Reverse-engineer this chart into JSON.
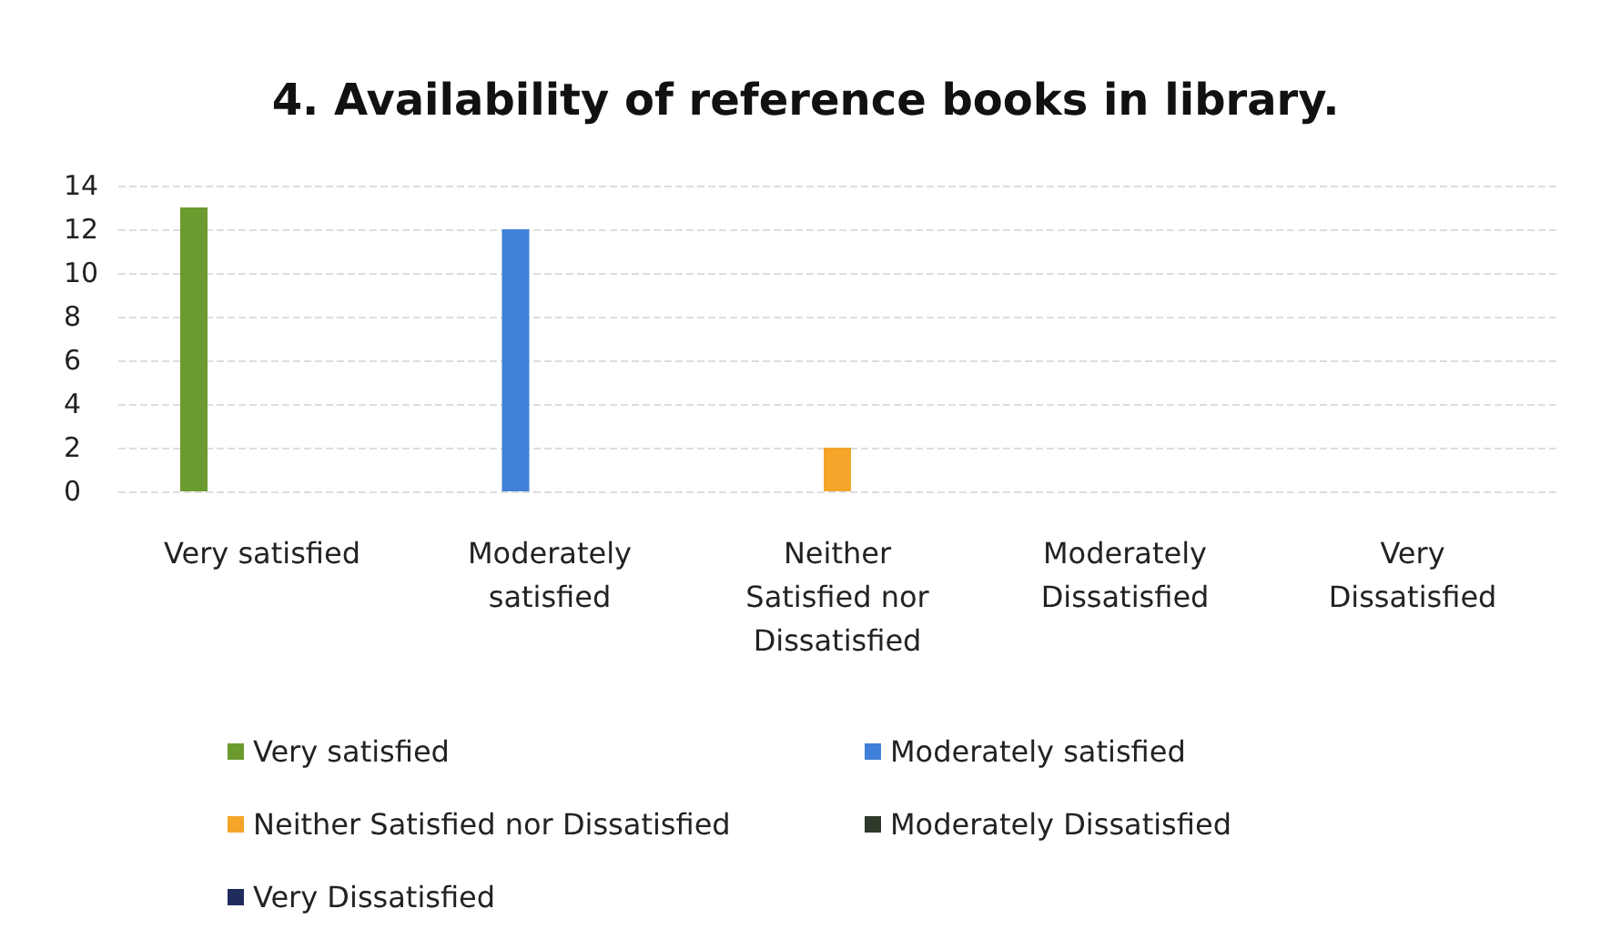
{
  "chart_data": {
    "type": "bar",
    "title": "4. Availability of reference books in library.",
    "categories": [
      "Very satisfied",
      "Moderately satisfied",
      "Neither Satisfied nor Dissatisfied",
      "Moderately Dissatisfied",
      "Very Dissatisfied"
    ],
    "series": [
      {
        "name": "Very satisfied",
        "color": "#6b9a2f",
        "values": [
          13,
          null,
          null,
          null,
          null
        ]
      },
      {
        "name": "Moderately satisfied",
        "color": "#3f80d8",
        "values": [
          null,
          12,
          null,
          null,
          null
        ]
      },
      {
        "name": "Neither Satisfied nor Dissatisfied",
        "color": "#f4a52a",
        "values": [
          null,
          null,
          2,
          null,
          null
        ]
      },
      {
        "name": "Moderately Dissatisfied",
        "color": "#2e3a2a",
        "values": [
          null,
          null,
          null,
          0,
          null
        ]
      },
      {
        "name": "Very Dissatisfied",
        "color": "#1f2c5c",
        "values": [
          null,
          null,
          null,
          null,
          0
        ]
      }
    ],
    "ylim": [
      0,
      14
    ],
    "yticks": [
      0,
      2,
      4,
      6,
      8,
      10,
      12,
      14
    ],
    "grid": "y",
    "legend": "bottom"
  }
}
